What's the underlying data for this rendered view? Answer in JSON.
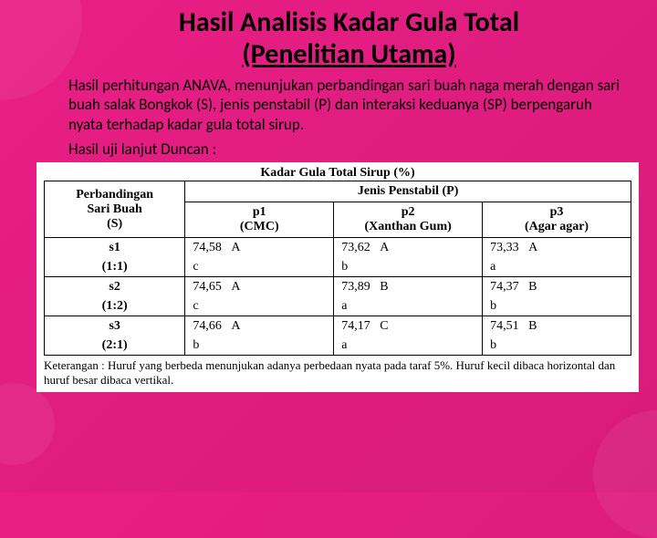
{
  "title_line1": "Hasil Analisis Kadar Gula Total",
  "title_line2": "(Penelitian Utama)",
  "body_p1": "Hasil perhitungan ANAVA, menunjukan perbandingan sari buah naga merah dengan sari buah salak Bongkok (S), jenis penstabil (P) dan interaksi keduanya (SP) berpengaruh nyata terhadap kadar gula total sirup.",
  "body_p2": "Hasil uji lanjut Duncan :",
  "table": {
    "title": "Kadar Gula Total Sirup (%)",
    "header_left_l1": "Perbandingan",
    "header_left_l2": "Sari Buah",
    "header_left_l3": "(S)",
    "header_right": "Jenis Penstabil (P)",
    "p1_l1": "p1",
    "p1_l2": "(CMC)",
    "p2_l1": "p2",
    "p2_l2": "(Xanthan Gum)",
    "p3_l1": "p3",
    "p3_l2": "(Agar agar)",
    "rows": [
      {
        "s": "s1",
        "ratio": "(1:1)",
        "v1": "74,58",
        "c1": "A",
        "l1": "c",
        "v2": "73,62",
        "c2": "A",
        "l2": "b",
        "v3": "73,33",
        "c3": "A",
        "l3": "a"
      },
      {
        "s": "s2",
        "ratio": "(1:2)",
        "v1": "74,65",
        "c1": "A",
        "l1": "c",
        "v2": "73,89",
        "c2": "B",
        "l2": "a",
        "v3": "74,37",
        "c3": "B",
        "l3": "b"
      },
      {
        "s": "s3",
        "ratio": "(2:1)",
        "v1": "74,66",
        "c1": "A",
        "l1": "b",
        "v2": "74,17",
        "c2": "C",
        "l2": "a",
        "v3": "74,51",
        "c3": "B",
        "l3": "b"
      }
    ],
    "caption": "Keterangan : Huruf yang berbeda menunjukan adanya perbedaan nyata pada taraf 5%. Huruf kecil dibaca horizontal dan huruf besar dibaca vertikal."
  },
  "colors": {
    "bg_start": "#e91e85",
    "bg_end": "#d81b7a",
    "text": "#000000",
    "table_bg": "#ffffff",
    "border": "#000000"
  }
}
